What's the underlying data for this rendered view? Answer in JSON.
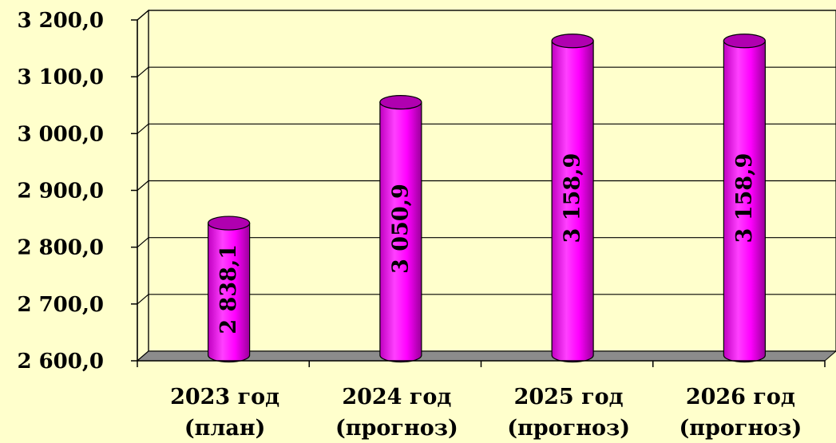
{
  "chart_data": {
    "type": "bar",
    "style": "3d-cylinder",
    "categories": [
      [
        "2023 год",
        "(план)"
      ],
      [
        "2024 год",
        "(прогноз)"
      ],
      [
        "2025 год",
        "(прогноз)"
      ],
      [
        "2026 год",
        "(прогноз)"
      ]
    ],
    "values": [
      2838.1,
      3050.9,
      3158.9,
      3158.9
    ],
    "data_labels": [
      "2 838,1",
      "3 050,9",
      "3 158,9",
      "3 158,9"
    ],
    "y_ticks": [
      "2 600,0",
      "2 700,0",
      "2 800,0",
      "2 900,0",
      "3 000,0",
      "3 100,0",
      "3 200,0"
    ],
    "ylim": [
      2600,
      3200
    ],
    "grid": true,
    "legend": "none",
    "colors": {
      "background": "#FFFFCC",
      "bar": "#FF00FF",
      "bar_dark": "#B000B0",
      "floor": "#8C8C8C",
      "grid": "#000000"
    }
  }
}
